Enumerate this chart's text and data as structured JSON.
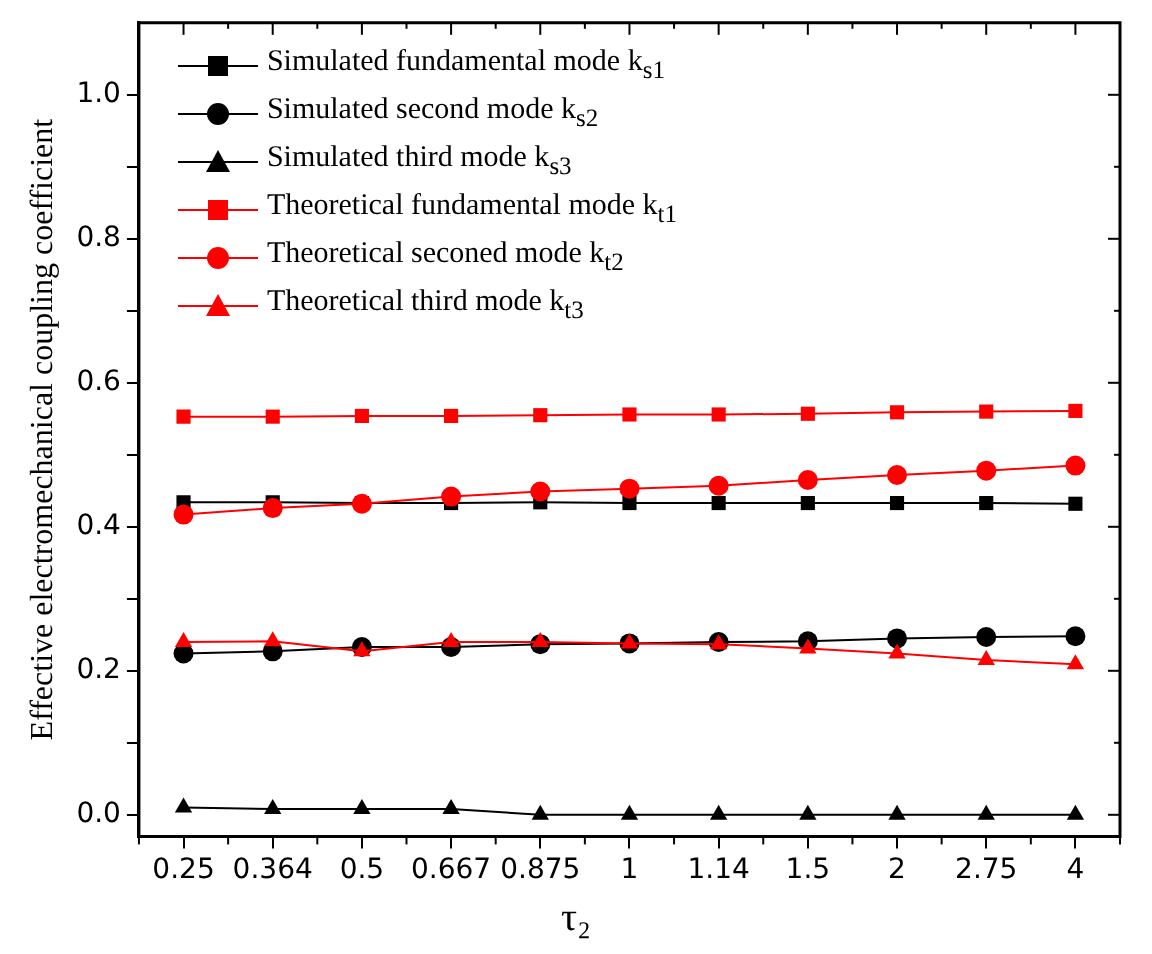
{
  "chart_data": {
    "type": "line",
    "xlabel": "τ₂",
    "ylabel": "Effective electromechanical coupling coefficient",
    "categories": [
      "0.25",
      "0.364",
      "0.5",
      "0.667",
      "0.875",
      "1",
      "1.14",
      "1.5",
      "2",
      "2.75",
      "4"
    ],
    "ylim": [
      -0.03,
      1.1
    ],
    "yticks": [
      {
        "value": 0,
        "label": "0.0"
      },
      {
        "value": 0.1,
        "label": null
      },
      {
        "value": 0.2,
        "label": "0.2"
      },
      {
        "value": 0.3,
        "label": null
      },
      {
        "value": 0.4,
        "label": "0.4"
      },
      {
        "value": 0.5,
        "label": null
      },
      {
        "value": 0.6,
        "label": "0.6"
      },
      {
        "value": 0.7,
        "label": null
      },
      {
        "value": 0.8,
        "label": "0.8"
      },
      {
        "value": 0.9,
        "label": null
      },
      {
        "value": 1.0,
        "label": "1.0"
      }
    ],
    "grid": false,
    "legend": "top left",
    "series": [
      {
        "name": "Simulated fundamental mode k$_{s1}$",
        "color": "#000000",
        "marker": "square",
        "values": [
          0.434,
          0.434,
          0.433,
          0.433,
          0.434,
          0.433,
          0.433,
          0.433,
          0.433,
          0.433,
          0.432
        ]
      },
      {
        "name": "Simulated second mode k$_{s2}$",
        "color": "#000000",
        "marker": "circle",
        "values": [
          0.224,
          0.227,
          0.233,
          0.233,
          0.237,
          0.238,
          0.24,
          0.241,
          0.245,
          0.247,
          0.248
        ]
      },
      {
        "name": "Simulated third mode k$_{s3}$",
        "color": "#000000",
        "marker": "triangle",
        "values": [
          0.01,
          0.008,
          0.008,
          0.008,
          0.0,
          0.0,
          0.0,
          0.0,
          0.0,
          0.0,
          0.0
        ]
      },
      {
        "name": "Theoretical fundamental mode k$_{t1}$",
        "color": "#ff0000",
        "marker": "square",
        "values": [
          0.553,
          0.553,
          0.554,
          0.554,
          0.555,
          0.556,
          0.556,
          0.557,
          0.559,
          0.56,
          0.561
        ]
      },
      {
        "name": "Theoretical seconed mode k$_{t2}$",
        "color": "#ff0000",
        "marker": "circle",
        "values": [
          0.417,
          0.426,
          0.432,
          0.442,
          0.449,
          0.453,
          0.457,
          0.465,
          0.472,
          0.478,
          0.485
        ]
      },
      {
        "name": "Theoretical third mode k$_{t3}$",
        "color": "#ff0000",
        "marker": "triangle",
        "values": [
          0.24,
          0.241,
          0.227,
          0.24,
          0.24,
          0.238,
          0.237,
          0.231,
          0.224,
          0.215,
          0.209
        ]
      }
    ]
  }
}
